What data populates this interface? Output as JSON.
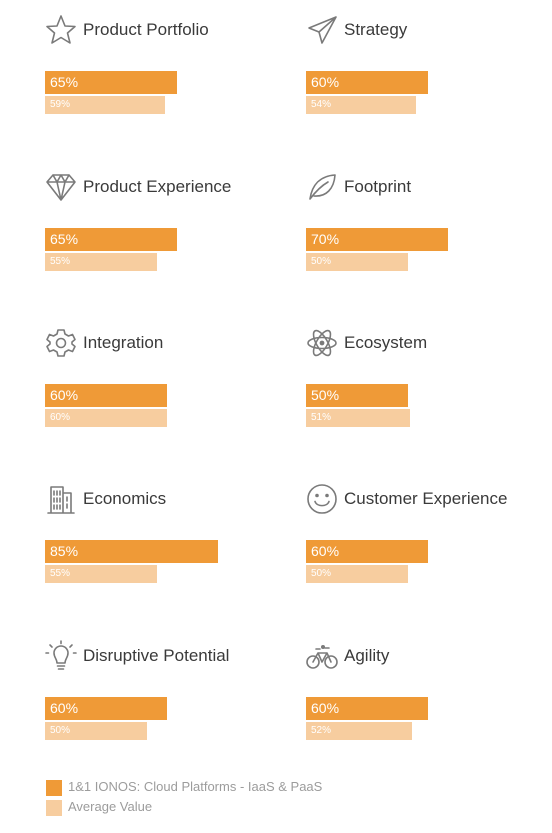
{
  "chart_data": {
    "type": "bar",
    "xlim": [
      0,
      100
    ],
    "series": [
      {
        "name": "1&1 IONOS: Cloud Platforms - IaaS & PaaS",
        "color": "#ef9a37"
      },
      {
        "name": "Average Value",
        "color": "#f7cd9f"
      }
    ],
    "metrics": [
      {
        "name": "Product Portfolio",
        "icon": "star-icon",
        "value": 65,
        "value_label": "65%",
        "average": 59,
        "average_label": "59%"
      },
      {
        "name": "Strategy",
        "icon": "paper-plane-icon",
        "value": 60,
        "value_label": "60%",
        "average": 54,
        "average_label": "54%"
      },
      {
        "name": "Product Experience",
        "icon": "diamond-icon",
        "value": 65,
        "value_label": "65%",
        "average": 55,
        "average_label": "55%"
      },
      {
        "name": "Footprint",
        "icon": "leaf-icon",
        "value": 70,
        "value_label": "70%",
        "average": 50,
        "average_label": "50%"
      },
      {
        "name": "Integration",
        "icon": "gear-icon",
        "value": 60,
        "value_label": "60%",
        "average": 60,
        "average_label": "60%"
      },
      {
        "name": "Ecosystem",
        "icon": "atom-icon",
        "value": 50,
        "value_label": "50%",
        "average": 51,
        "average_label": "51%"
      },
      {
        "name": "Economics",
        "icon": "building-icon",
        "value": 85,
        "value_label": "85%",
        "average": 55,
        "average_label": "55%"
      },
      {
        "name": "Customer Experience",
        "icon": "smiley-icon",
        "value": 60,
        "value_label": "60%",
        "average": 50,
        "average_label": "50%"
      },
      {
        "name": "Disruptive Potential",
        "icon": "lightbulb-icon",
        "value": 60,
        "value_label": "60%",
        "average": 50,
        "average_label": "50%"
      },
      {
        "name": "Agility",
        "icon": "bicycle-icon",
        "value": 60,
        "value_label": "60%",
        "average": 52,
        "average_label": "52%"
      }
    ]
  },
  "legend": {
    "primary": "1&1 IONOS: Cloud Platforms - IaaS & PaaS",
    "average": "Average Value"
  }
}
